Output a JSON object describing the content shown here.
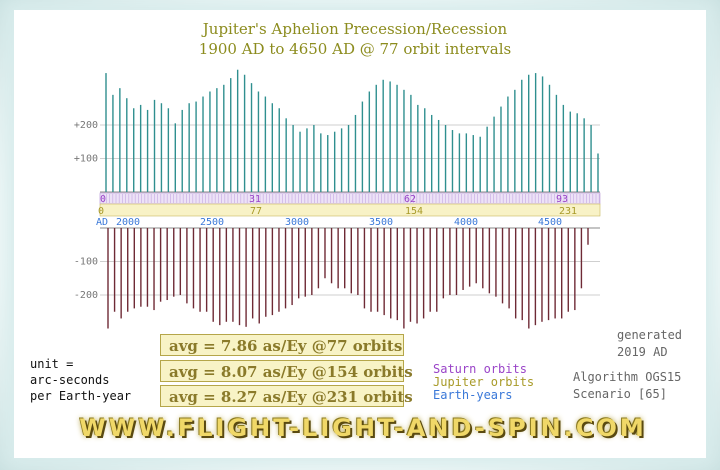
{
  "chart_data": {
    "type": "bar",
    "title": "Jupiter's Aphelion Precession/Recession",
    "subtitle": "1900 AD to 4650 AD @ 77 orbit intervals",
    "y_ticks": [
      {
        "value": 200,
        "label": "+200"
      },
      {
        "value": 100,
        "label": "+100"
      },
      {
        "value": -100,
        "label": "-100"
      },
      {
        "value": -200,
        "label": "-200"
      }
    ],
    "positive_series_color": "#2f8f8f",
    "negative_series_color": "#6e2a35",
    "positive_values": [
      355,
      290,
      310,
      280,
      250,
      260,
      245,
      275,
      265,
      250,
      205,
      245,
      265,
      270,
      285,
      300,
      310,
      320,
      340,
      365,
      350,
      325,
      300,
      285,
      265,
      250,
      220,
      200,
      180,
      190,
      200,
      175,
      170,
      180,
      190,
      200,
      230,
      270,
      300,
      320,
      335,
      330,
      320,
      305,
      290,
      260,
      250,
      230,
      215,
      200,
      185,
      175,
      175,
      170,
      165,
      195,
      225,
      255,
      285,
      305,
      335,
      350,
      355,
      345,
      320,
      290,
      260,
      240,
      235,
      220,
      200,
      115
    ],
    "negative_values": [
      -300,
      -250,
      -270,
      -250,
      -240,
      -235,
      -235,
      -245,
      -220,
      -215,
      -205,
      -200,
      -225,
      -240,
      -250,
      -250,
      -280,
      -290,
      -280,
      -280,
      -290,
      -295,
      -270,
      -285,
      -265,
      -260,
      -250,
      -240,
      -230,
      -210,
      -205,
      -200,
      -180,
      -150,
      -165,
      -180,
      -180,
      -195,
      -200,
      -240,
      -250,
      -250,
      -260,
      -270,
      -275,
      -300,
      -280,
      -285,
      -270,
      -250,
      -250,
      -210,
      -200,
      -200,
      -185,
      -175,
      -165,
      -180,
      -195,
      -205,
      -225,
      -240,
      -270,
      -275,
      -300,
      -290,
      -280,
      -275,
      -270,
      -270,
      -250,
      -245,
      -180,
      -50
    ],
    "saturn_ticks": [
      "0",
      "31",
      "62",
      "93"
    ],
    "jupiter_ticks": [
      "0",
      "77",
      "154",
      "231"
    ],
    "year_ticks": [
      "AD",
      "2000",
      "2500",
      "3000",
      "3500",
      "4000",
      "4500"
    ],
    "averages": [
      "avg = 7.86 as/Ey @77 orbits",
      "avg = 8.07 as/Ey @154 orbits",
      "avg = 8.27 as/Ey @231 orbits"
    ],
    "legend": [
      {
        "label": "Saturn orbits",
        "color": "#9a44c8"
      },
      {
        "label": "Jupiter orbits",
        "color": "#a89a28"
      },
      {
        "label": "Earth-years",
        "color": "#3a78d8"
      }
    ]
  },
  "unit_text": [
    "unit =",
    "arc-seconds",
    "per Earth-year"
  ],
  "generated_text": [
    "generated",
    "2019 AD"
  ],
  "algorithm_text": [
    "Algorithm OGS15",
    "Scenario [65]"
  ],
  "footer": "WWW.FLIGHT-LIGHT-AND-SPIN.COM"
}
